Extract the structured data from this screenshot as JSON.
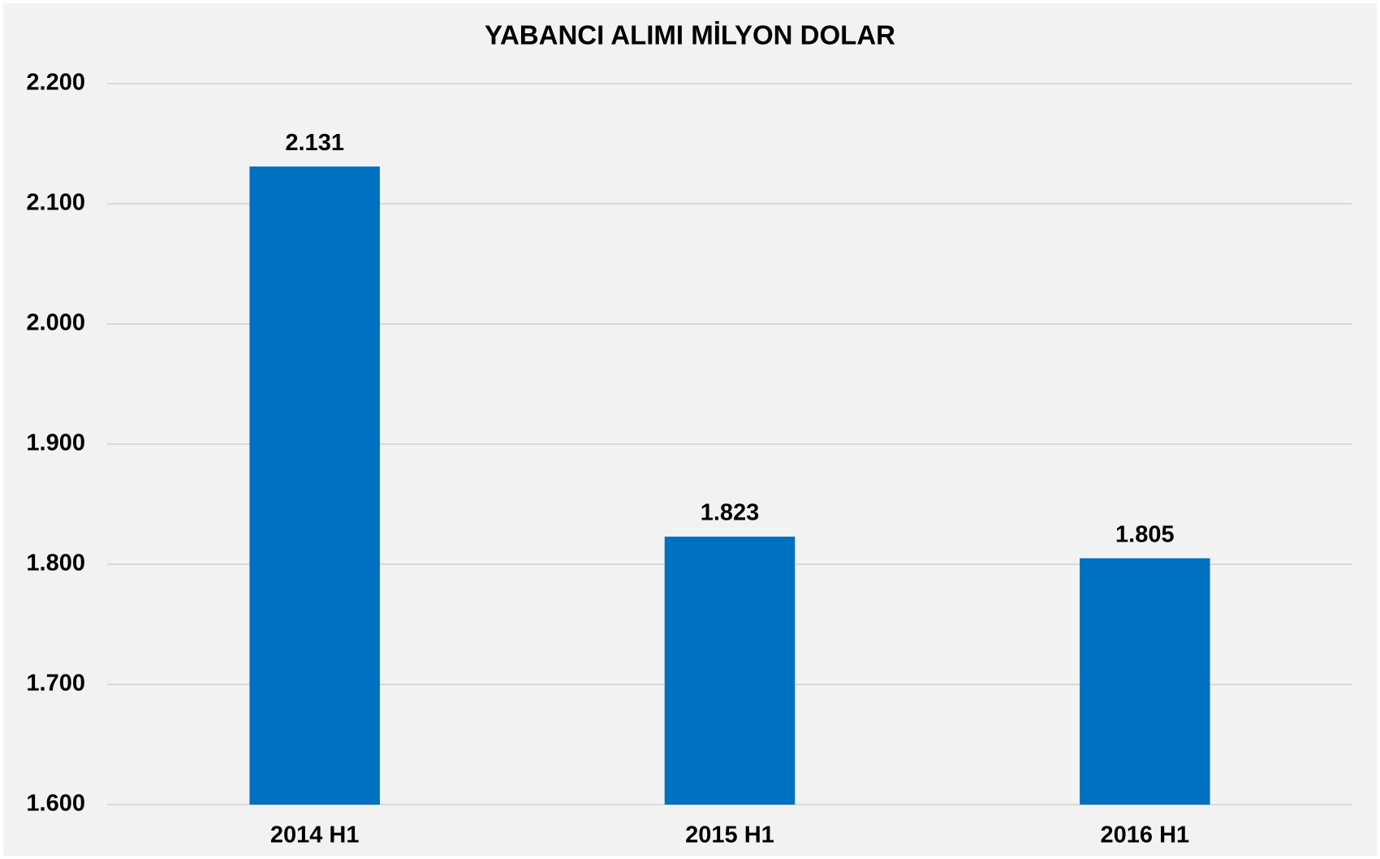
{
  "chart_data": {
    "type": "bar",
    "title": "YABANCI ALIMI MİLYON DOLAR",
    "categories": [
      "2014 H1",
      "2015 H1",
      "2016 H1"
    ],
    "values": [
      2131,
      1823,
      1805
    ],
    "value_labels": [
      "2.131",
      "1.823",
      "1.805"
    ],
    "color": "#0070c0",
    "ylim": [
      1600,
      2200
    ],
    "yticks": [
      {
        "value": 1600,
        "label": "1.600"
      },
      {
        "value": 1700,
        "label": "1.700"
      },
      {
        "value": 1800,
        "label": "1.800"
      },
      {
        "value": 1900,
        "label": "1.900"
      },
      {
        "value": 2000,
        "label": "2.000"
      },
      {
        "value": 2100,
        "label": "2.100"
      },
      {
        "value": 2200,
        "label": "2.200"
      }
    ],
    "grid": true
  }
}
